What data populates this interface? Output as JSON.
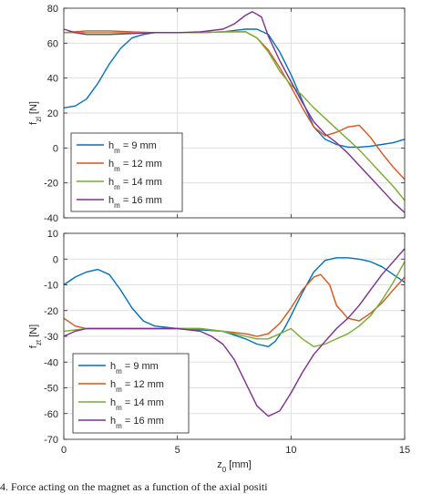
{
  "chart_data": [
    {
      "type": "line",
      "ylabel": "f_zl [N]",
      "xlim": [
        0,
        15
      ],
      "ylim": [
        -40,
        80
      ],
      "xticks": [
        0,
        5,
        10,
        15
      ],
      "yticks": [
        -40,
        -20,
        0,
        20,
        40,
        60,
        80
      ],
      "show_xtick_labels": false,
      "grid": true,
      "legend_position": "lower-left",
      "series": [
        {
          "name": "h_m = 9 mm",
          "color": "#0072BD",
          "x": [
            0,
            0.5,
            1,
            1.5,
            2,
            2.5,
            3,
            3.5,
            4,
            5,
            6,
            7,
            8,
            8.5,
            9,
            9.5,
            10,
            10.5,
            11,
            11.5,
            12,
            12.5,
            13,
            13.5,
            14,
            14.5,
            15
          ],
          "y": [
            23,
            24,
            28,
            37,
            48,
            57,
            63,
            65,
            66,
            66,
            66,
            66.5,
            68,
            68,
            65,
            55,
            42,
            27,
            12,
            5,
            2,
            0.5,
            0.5,
            1,
            2,
            3,
            5
          ]
        },
        {
          "name": "h_m = 12 mm",
          "color": "#D95319",
          "x": [
            0,
            1,
            2,
            3,
            4,
            5,
            6,
            7,
            8,
            8.5,
            9,
            9.5,
            10,
            10.5,
            11,
            11.5,
            12,
            12.5,
            13,
            13.5,
            14,
            14.5,
            15
          ],
          "y": [
            66,
            67,
            67,
            66.5,
            66,
            66,
            66,
            66.5,
            66.5,
            63,
            56,
            46,
            35,
            23,
            12,
            7,
            9,
            12,
            13,
            6,
            -3,
            -11,
            -18
          ]
        },
        {
          "name": "h_m = 14 mm",
          "color": "#77AC30",
          "x": [
            0,
            1,
            2,
            3,
            4,
            5,
            6,
            7,
            8,
            8.5,
            9,
            9.5,
            10,
            10.5,
            11,
            11.5,
            12,
            12.5,
            13,
            13.5,
            14,
            14.5,
            15
          ],
          "y": [
            66,
            66,
            66,
            66,
            66,
            66,
            66,
            66.5,
            66.5,
            63,
            55,
            44,
            36,
            30,
            23,
            17,
            11,
            5,
            -1,
            -8,
            -15,
            -22,
            -30
          ]
        },
        {
          "name": "h_m = 16 mm",
          "color": "#7E2F8E",
          "x": [
            0,
            0.5,
            1,
            2,
            3,
            4,
            5,
            6,
            7,
            7.5,
            8,
            8.3,
            8.7,
            9,
            9.5,
            10,
            10.5,
            11,
            11.5,
            12,
            12.5,
            13,
            13.5,
            14,
            14.5,
            15
          ],
          "y": [
            68,
            66,
            65,
            65,
            65.5,
            66,
            66,
            66.5,
            68,
            71,
            76,
            78,
            75,
            64,
            50,
            38,
            26,
            15,
            8,
            3,
            -3,
            -10,
            -17,
            -24,
            -31,
            -37
          ]
        }
      ]
    },
    {
      "type": "line",
      "xlabel": "z_0 [mm]",
      "ylabel": "f_zt [N]",
      "xlim": [
        0,
        15
      ],
      "ylim": [
        -70,
        10
      ],
      "xticks": [
        0,
        5,
        10,
        15
      ],
      "yticks": [
        -70,
        -60,
        -50,
        -40,
        -30,
        -20,
        -10,
        0,
        10
      ],
      "show_xtick_labels": true,
      "grid": true,
      "legend_position": "lower-left",
      "series": [
        {
          "name": "h_m = 9 mm",
          "color": "#0072BD",
          "x": [
            0,
            0.5,
            1,
            1.5,
            2,
            2.5,
            3,
            3.5,
            4,
            5,
            6,
            7,
            8,
            8.5,
            9,
            9.3,
            9.7,
            10,
            10.5,
            11,
            11.5,
            12,
            12.5,
            13,
            13.5,
            14,
            14.5,
            15
          ],
          "y": [
            -10,
            -7,
            -5,
            -4,
            -6,
            -12,
            -19,
            -24,
            -26,
            -27,
            -27.5,
            -28,
            -31,
            -33,
            -34,
            -32,
            -27,
            -22,
            -13,
            -5,
            -0.5,
            0.5,
            0.5,
            0,
            -1,
            -3,
            -6,
            -9
          ]
        },
        {
          "name": "h_m = 12 mm",
          "color": "#D95319",
          "x": [
            0,
            0.5,
            1,
            2,
            3,
            4,
            5,
            6,
            7,
            8,
            8.5,
            9,
            9.5,
            10,
            10.5,
            11,
            11.3,
            11.7,
            12,
            12.5,
            13,
            13.5,
            14,
            14.5,
            15
          ],
          "y": [
            -23,
            -26,
            -27,
            -27,
            -27,
            -27,
            -27,
            -27,
            -28,
            -29,
            -30,
            -29,
            -25,
            -19,
            -12,
            -7,
            -6,
            -10,
            -18,
            -23,
            -24,
            -21,
            -17,
            -12,
            -7
          ]
        },
        {
          "name": "h_m = 14 mm",
          "color": "#77AC30",
          "x": [
            0,
            1,
            2,
            3,
            4,
            5,
            6,
            7,
            7.5,
            8,
            8.5,
            9,
            9.5,
            10,
            10.5,
            11,
            11.5,
            12,
            12.5,
            13,
            13.5,
            14,
            14.5,
            15
          ],
          "y": [
            -28,
            -27,
            -27,
            -27,
            -27,
            -27,
            -27,
            -28,
            -29,
            -30,
            -31,
            -31,
            -29,
            -27,
            -31,
            -34,
            -33,
            -31,
            -29,
            -26,
            -22,
            -16,
            -9,
            -1
          ]
        },
        {
          "name": "h_m = 16 mm",
          "color": "#7E2F8E",
          "x": [
            0,
            0.5,
            1,
            2,
            3,
            4,
            5,
            5.5,
            6,
            6.5,
            7,
            7.5,
            8,
            8.5,
            9,
            9.5,
            10,
            10.5,
            11,
            11.5,
            12,
            12.5,
            13,
            13.5,
            14,
            14.5,
            15
          ],
          "y": [
            -30,
            -28,
            -27,
            -27,
            -27,
            -27,
            -27,
            -27.5,
            -28,
            -30,
            -33,
            -39,
            -48,
            -57,
            -61,
            -59,
            -52,
            -44,
            -37,
            -32,
            -27,
            -23,
            -18,
            -12,
            -6,
            -1,
            4
          ]
        }
      ]
    }
  ],
  "caption": "4. Force acting on the magnet as a function of the axial positi"
}
